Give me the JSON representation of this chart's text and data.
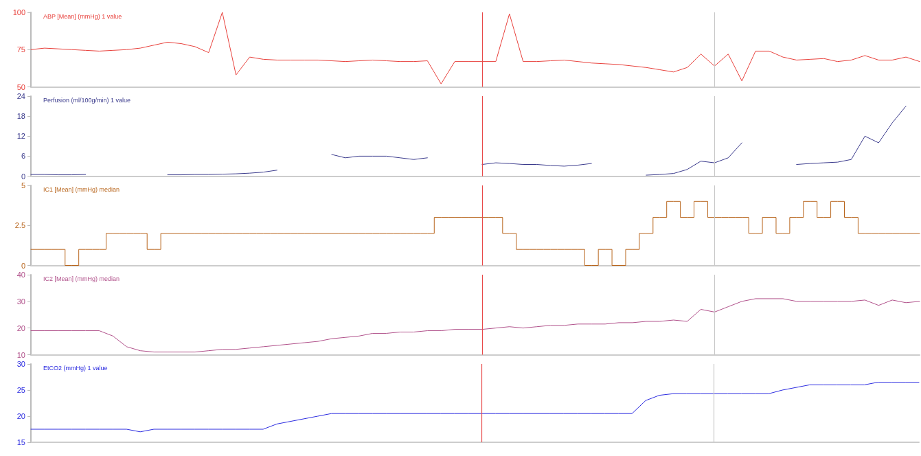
{
  "chart_data": [
    {
      "type": "line",
      "title": "ABP [Mean] (mmHg) 1 value",
      "categories": [
        null,
        null,
        null,
        null,
        null,
        null,
        null,
        null,
        null,
        null,
        null,
        null,
        null,
        null,
        null,
        null,
        null,
        null,
        null,
        null,
        null,
        null,
        null,
        null,
        null,
        null,
        null,
        null,
        null,
        null,
        null,
        null,
        null,
        null,
        null,
        null,
        null,
        null,
        null,
        null,
        null,
        null,
        null,
        null,
        null,
        null,
        null,
        null,
        null,
        null,
        null,
        null,
        null,
        null,
        null,
        null,
        null,
        null,
        null,
        null,
        null,
        null,
        null,
        null,
        null,
        null
      ],
      "ylim": [
        50,
        100
      ],
      "yticks": [
        50,
        75,
        100
      ],
      "tick_labels": "y",
      "marker": "none",
      "line_style": "solid",
      "series": [
        {
          "color": "#e8413c",
          "values": [
            75,
            76,
            75.5,
            75,
            74.5,
            74,
            74.5,
            75,
            76,
            78,
            80,
            79,
            77,
            73,
            100,
            58,
            70,
            68.5,
            68,
            68,
            68,
            68,
            67.5,
            67,
            67.5,
            68,
            67.5,
            67,
            67,
            67.5,
            52,
            67,
            67,
            67,
            67,
            99,
            67,
            67,
            67.5,
            68,
            67,
            66,
            65.5,
            65,
            64,
            63,
            61.5,
            60,
            63,
            72,
            64,
            72,
            54,
            74,
            74,
            70,
            68,
            68.5,
            69,
            67,
            68,
            71,
            68,
            68,
            70,
            67
          ]
        }
      ]
    },
    {
      "type": "line",
      "title": "Perfusion (ml/100g/min) 1 value",
      "categories": [
        null,
        null,
        null,
        null,
        null,
        null,
        null,
        null,
        null,
        null,
        null,
        null,
        null,
        null,
        null,
        null,
        null,
        null,
        null,
        null,
        null,
        null,
        null,
        null,
        null,
        null,
        null,
        null,
        null,
        null,
        null,
        null,
        null,
        null,
        null,
        null,
        null,
        null,
        null,
        null,
        null,
        null,
        null,
        null,
        null,
        null,
        null,
        null,
        null,
        null,
        null,
        null,
        null,
        null,
        null,
        null,
        null,
        null,
        null,
        null,
        null,
        null,
        null,
        null,
        null,
        null
      ],
      "ylim": [
        0,
        24
      ],
      "yticks": [
        0,
        6,
        12,
        18,
        24
      ],
      "tick_labels": "y",
      "marker": "none",
      "line_style": "solid",
      "series": [
        {
          "color": "#3a3a8c",
          "values": [
            0.5,
            0.5,
            0.4,
            0.4,
            0.5,
            null,
            null,
            null,
            null,
            null,
            0.4,
            0.4,
            0.5,
            0.5,
            0.6,
            0.7,
            0.9,
            1.2,
            1.8,
            null,
            null,
            null,
            6.5,
            5.5,
            6,
            6,
            6,
            5.5,
            5,
            5.5,
            null,
            null,
            null,
            3.5,
            4,
            3.8,
            3.5,
            3.5,
            3.2,
            3,
            3.3,
            3.8,
            null,
            null,
            null,
            0.3,
            0.5,
            0.8,
            2,
            4.5,
            4,
            5.5,
            10,
            null,
            null,
            null,
            3.5,
            3.8,
            4,
            4.2,
            5,
            12,
            10,
            16,
            21,
            null
          ]
        }
      ]
    },
    {
      "type": "step",
      "title": "IC1 [Mean] (mmHg) median",
      "categories": [
        null,
        null,
        null,
        null,
        null,
        null,
        null,
        null,
        null,
        null,
        null,
        null,
        null,
        null,
        null,
        null,
        null,
        null,
        null,
        null,
        null,
        null,
        null,
        null,
        null,
        null,
        null,
        null,
        null,
        null,
        null,
        null,
        null,
        null,
        null,
        null,
        null,
        null,
        null,
        null,
        null,
        null,
        null,
        null,
        null,
        null,
        null,
        null,
        null,
        null,
        null,
        null,
        null,
        null,
        null,
        null,
        null,
        null,
        null,
        null,
        null,
        null,
        null,
        null,
        null,
        null
      ],
      "ylim": [
        0,
        5
      ],
      "yticks": [
        0,
        2.5,
        5
      ],
      "tick_labels": "y",
      "marker": "none",
      "line_style": "solid",
      "series": [
        {
          "color": "#b8651c",
          "values": [
            1,
            1,
            1,
            0,
            1,
            1,
            2,
            2,
            2,
            1,
            2,
            2,
            2,
            2,
            2,
            2,
            2,
            2,
            2,
            2,
            2,
            2,
            2,
            2,
            2,
            2,
            2,
            2,
            2,
            2,
            3,
            3,
            3,
            3,
            3,
            2,
            1,
            1,
            1,
            1,
            1,
            0,
            1,
            0,
            1,
            2,
            3,
            4,
            3,
            4,
            3,
            3,
            3,
            2,
            3,
            2,
            3,
            4,
            3,
            4,
            3,
            2,
            2,
            2,
            2,
            2
          ]
        }
      ]
    },
    {
      "type": "line",
      "title": "IC2 [Mean] (mmHg) median",
      "categories": [
        null,
        null,
        null,
        null,
        null,
        null,
        null,
        null,
        null,
        null,
        null,
        null,
        null,
        null,
        null,
        null,
        null,
        null,
        null,
        null,
        null,
        null,
        null,
        null,
        null,
        null,
        null,
        null,
        null,
        null,
        null,
        null,
        null,
        null,
        null,
        null,
        null,
        null,
        null,
        null,
        null,
        null,
        null,
        null,
        null,
        null,
        null,
        null,
        null,
        null,
        null,
        null,
        null,
        null,
        null,
        null,
        null,
        null,
        null,
        null,
        null,
        null,
        null,
        null,
        null,
        null
      ],
      "ylim": [
        10,
        40
      ],
      "yticks": [
        10,
        20,
        30,
        40
      ],
      "tick_labels": "y",
      "marker": "none",
      "line_style": "solid",
      "series": [
        {
          "color": "#b0508a",
          "values": [
            19,
            19,
            19,
            19,
            19,
            19,
            17,
            13,
            11.5,
            11,
            11,
            11,
            11,
            11.5,
            12,
            12,
            12.5,
            13,
            13.5,
            14,
            14.5,
            15,
            16,
            16.5,
            17,
            18,
            18,
            18.5,
            18.5,
            19,
            19,
            19.5,
            19.5,
            19.5,
            20,
            20.5,
            20,
            20.5,
            21,
            21,
            21.5,
            21.5,
            21.5,
            22,
            22,
            22.5,
            22.5,
            23,
            22.5,
            27,
            26,
            28,
            30,
            31,
            31,
            31,
            30,
            30,
            30,
            30,
            30,
            30.5,
            28.5,
            30.5,
            29.5,
            30
          ]
        }
      ]
    },
    {
      "type": "line",
      "title": "EtCO2 (mmHg) 1 value",
      "categories": [
        null,
        null,
        null,
        null,
        null,
        null,
        null,
        null,
        null,
        null,
        null,
        null,
        null,
        null,
        null,
        null,
        null,
        null,
        null,
        null,
        null,
        null,
        null,
        null,
        null,
        null,
        null,
        null,
        null,
        null,
        null,
        null,
        null,
        null,
        null,
        null,
        null,
        null,
        null,
        null,
        null,
        null,
        null,
        null,
        null,
        null,
        null,
        null,
        null,
        null,
        null,
        null,
        null,
        null,
        null,
        null,
        null,
        null,
        null,
        null,
        null,
        null,
        null,
        null,
        null,
        null
      ],
      "ylim": [
        15,
        30
      ],
      "yticks": [
        15,
        20,
        25,
        30
      ],
      "marker": "none",
      "line_style": "solid",
      "series": [
        {
          "color": "#2a2ae0",
          "values": [
            17.5,
            17.5,
            17.5,
            17.5,
            17.5,
            17.5,
            17.5,
            17.5,
            17,
            17.5,
            17.5,
            17.5,
            17.5,
            17.5,
            17.5,
            17.5,
            17.5,
            17.5,
            18.5,
            19,
            19.5,
            20,
            20.5,
            20.5,
            20.5,
            20.5,
            20.5,
            20.5,
            20.5,
            20.5,
            20.5,
            20.5,
            20.5,
            20.5,
            20.5,
            20.5,
            20.5,
            20.5,
            20.5,
            20.5,
            20.5,
            20.5,
            20.5,
            20.5,
            20.5,
            23,
            24,
            24.3,
            24.3,
            24.3,
            24.3,
            24.3,
            24.3,
            24.3,
            24.3,
            25,
            25.5,
            26,
            26,
            26,
            26,
            26,
            26.5,
            26.5,
            26.5,
            26.5
          ]
        }
      ]
    }
  ]
}
